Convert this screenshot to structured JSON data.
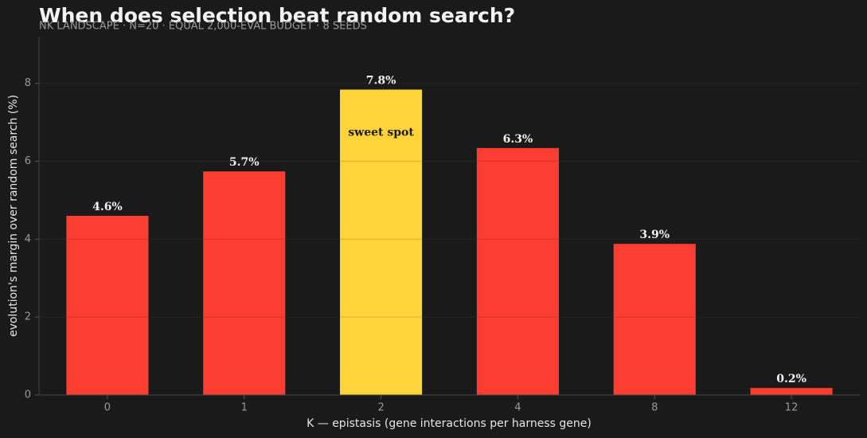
{
  "chart_data": {
    "type": "bar",
    "title": "When does selection beat random search?",
    "subtitle": "NK LANDSCAPE · N=20 · EQUAL 2,000-EVAL BUDGET · 8 SEEDS",
    "x_label": "K  —  epistasis (gene interactions per harness gene)",
    "y_label": "evolution's margin over random search (%)",
    "categories": [
      "0",
      "1",
      "2",
      "4",
      "8",
      "12"
    ],
    "values": [
      4.6,
      5.74,
      7.84,
      6.34,
      3.88,
      0.18
    ],
    "value_labels": [
      "4.6%",
      "5.7%",
      "7.8%",
      "6.3%",
      "3.9%",
      "0.2%"
    ],
    "colors": [
      "#fc3d32",
      "#fc3d32",
      "#ffd43b",
      "#fc3d32",
      "#fc3d32",
      "#fc3d32"
    ],
    "annotations": [
      {
        "text": "sweet spot",
        "category": "2"
      }
    ],
    "ylim": [
      0,
      9.2
    ],
    "yticks": [
      0,
      2,
      4,
      6,
      8
    ],
    "grid": true
  }
}
